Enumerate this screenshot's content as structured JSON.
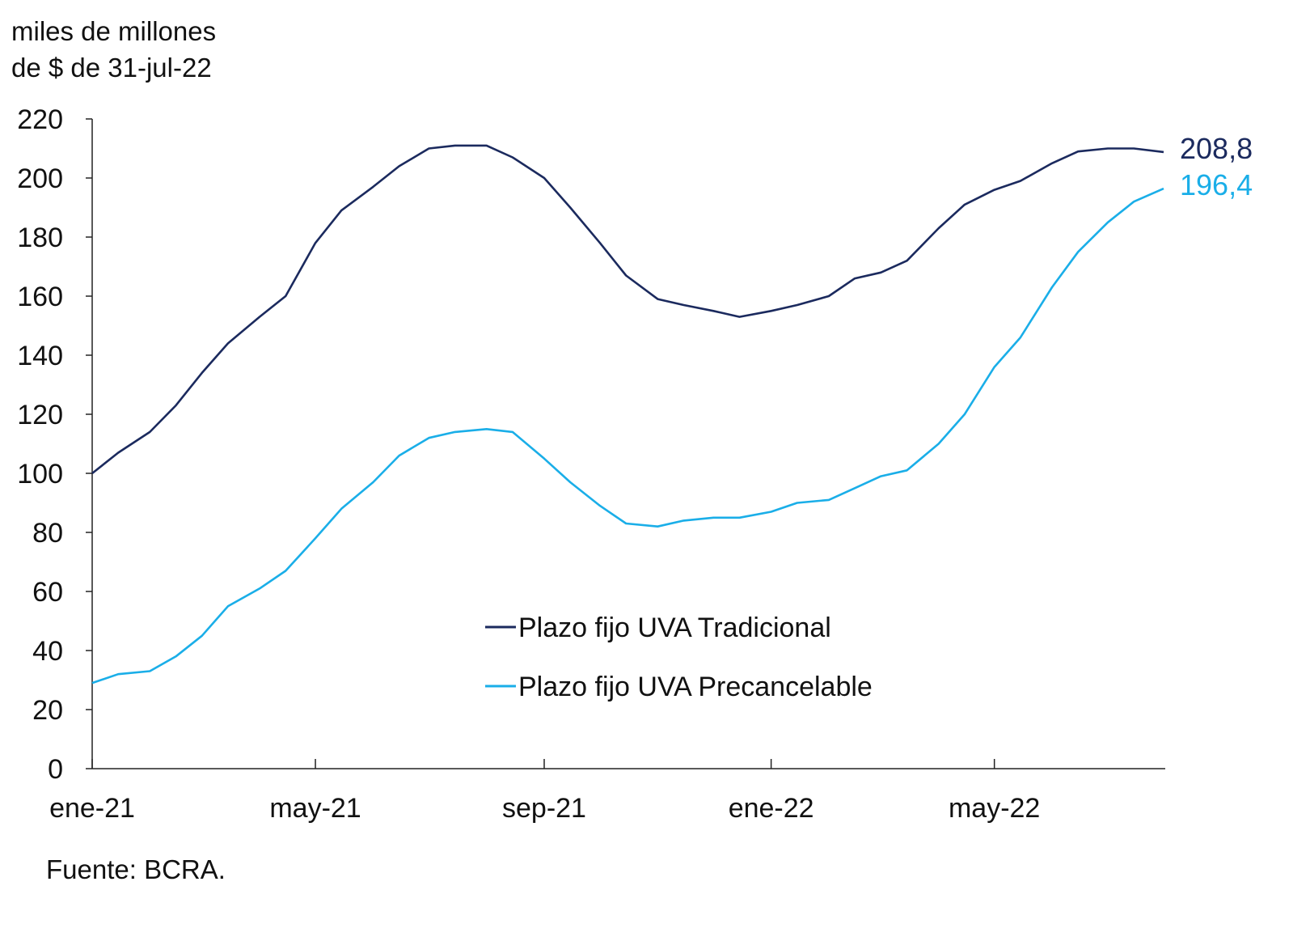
{
  "chart_data": {
    "type": "line",
    "ylabel_lines": [
      "miles de millones",
      "de $ de 31-jul-22"
    ],
    "source": "Fuente: BCRA.",
    "ylim": [
      0,
      220
    ],
    "yticks": [
      0,
      20,
      40,
      60,
      80,
      100,
      120,
      140,
      160,
      180,
      200,
      220
    ],
    "xlim": [
      "2021-01-01",
      "2022-07-31"
    ],
    "xticks": [
      {
        "date": "2021-01-01",
        "label": "ene-21"
      },
      {
        "date": "2021-05-01",
        "label": "may-21"
      },
      {
        "date": "2021-09-01",
        "label": "sep-21"
      },
      {
        "date": "2022-01-01",
        "label": "ene-22"
      },
      {
        "date": "2022-05-01",
        "label": "may-22"
      }
    ],
    "grid": false,
    "legend_placement": "bottom-center",
    "x": [
      "2021-01-01",
      "2021-01-15",
      "2021-02-01",
      "2021-02-15",
      "2021-03-01",
      "2021-03-15",
      "2021-04-01",
      "2021-04-15",
      "2021-05-01",
      "2021-05-15",
      "2021-06-01",
      "2021-06-15",
      "2021-07-01",
      "2021-07-15",
      "2021-08-01",
      "2021-08-15",
      "2021-09-01",
      "2021-09-15",
      "2021-10-01",
      "2021-10-15",
      "2021-11-01",
      "2021-11-15",
      "2021-12-01",
      "2021-12-15",
      "2022-01-01",
      "2022-01-15",
      "2022-02-01",
      "2022-02-15",
      "2022-03-01",
      "2022-03-15",
      "2022-04-01",
      "2022-04-15",
      "2022-05-01",
      "2022-05-15",
      "2022-06-01",
      "2022-06-15",
      "2022-07-01",
      "2022-07-15",
      "2022-07-31"
    ],
    "series": [
      {
        "name": "Plazo fijo UVA Tradicional",
        "color": "#1b2a5e",
        "end_label": "208,8",
        "values": [
          100,
          107,
          114,
          123,
          134,
          144,
          153,
          160,
          178,
          189,
          197,
          204,
          210,
          211,
          211,
          207,
          200,
          190,
          178,
          167,
          159,
          157,
          155,
          153,
          155,
          157,
          160,
          166,
          168,
          172,
          183,
          191,
          196,
          199,
          205,
          209,
          210,
          210,
          208.8
        ]
      },
      {
        "name": "Plazo fijo UVA Precancelable",
        "color": "#1aaee8",
        "end_label": "196,4",
        "values": [
          29,
          32,
          33,
          38,
          45,
          55,
          61,
          67,
          78,
          88,
          97,
          106,
          112,
          114,
          115,
          114,
          105,
          97,
          89,
          83,
          82,
          84,
          85,
          85,
          87,
          90,
          91,
          95,
          99,
          101,
          110,
          120,
          136,
          146,
          163,
          175,
          185,
          192,
          196.4
        ]
      }
    ]
  }
}
